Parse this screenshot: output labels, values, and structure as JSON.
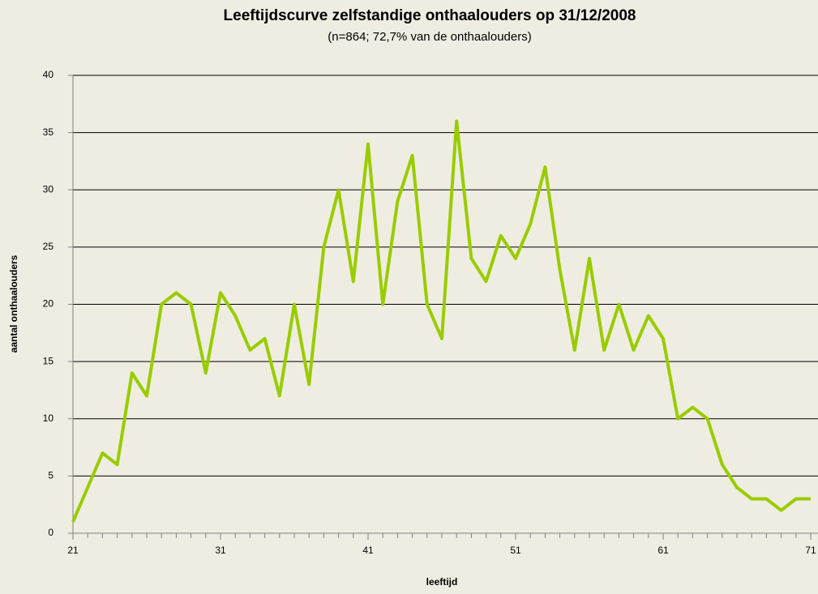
{
  "chart_data": {
    "type": "line",
    "title": "Leeftijdscurve zelfstandige onthaalouders op 31/12/2008",
    "subtitle": "(n=864; 72,7% van de onthaalouders)",
    "x_label": "leeftijd",
    "y_label": "aantal onthaalouders",
    "x": [
      21,
      22,
      23,
      24,
      25,
      26,
      27,
      28,
      29,
      30,
      31,
      32,
      33,
      34,
      35,
      36,
      37,
      38,
      39,
      40,
      41,
      42,
      43,
      44,
      45,
      46,
      47,
      48,
      49,
      50,
      51,
      52,
      53,
      54,
      55,
      56,
      57,
      58,
      59,
      60,
      61,
      62,
      63,
      64,
      65,
      66,
      67,
      68,
      69,
      70,
      71
    ],
    "series": [
      {
        "color": "#99cc00",
        "values": [
          1,
          4,
          7,
          6,
          14,
          12,
          20,
          21,
          20,
          14,
          21,
          19,
          16,
          17,
          12,
          20,
          13,
          25,
          30,
          22,
          34,
          20,
          29,
          33,
          20,
          17,
          36,
          24,
          22,
          26,
          24,
          27,
          32,
          23,
          16,
          24,
          16,
          20,
          16,
          19,
          17,
          10,
          11,
          10,
          6,
          4,
          3,
          3,
          2,
          3,
          3
        ]
      }
    ],
    "xlim": [
      21,
      71
    ],
    "xticks": [
      21,
      31,
      41,
      51,
      61,
      71
    ],
    "ylim": [
      0,
      40
    ],
    "yticks": [
      0,
      5,
      10,
      15,
      20,
      25,
      30,
      35,
      40
    ],
    "grid": true
  }
}
